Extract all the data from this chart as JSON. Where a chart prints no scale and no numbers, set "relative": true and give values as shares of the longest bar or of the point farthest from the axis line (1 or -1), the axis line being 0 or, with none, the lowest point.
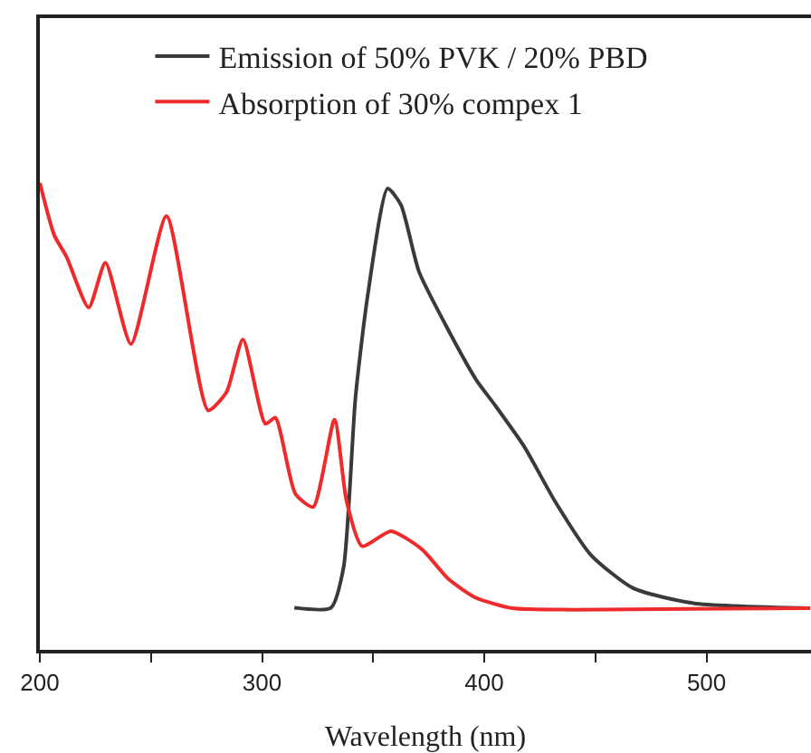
{
  "chart_data": {
    "type": "line",
    "xlabel": "Wavelength (nm)",
    "relative": true,
    "xlim": [
      200,
      547
    ],
    "xticks": [
      200,
      {
        "value": 250,
        "label": null
      },
      300,
      {
        "value": 350,
        "label": null
      },
      400,
      {
        "value": 450,
        "label": null
      },
      500
    ],
    "tick_labels": "x",
    "grid": false,
    "legend": "top",
    "marker": "none",
    "line_style": "solid",
    "series": [
      {
        "name": "Emission of 50% PVK / 20% PBD",
        "color": "#3a3a3a",
        "x": [
          314.5,
          331,
          336.7,
          342,
          347.5,
          356.5,
          362.5,
          370.6,
          382.8,
          396.4,
          404.5,
          418,
          431.7,
          448,
          467,
          494,
          546.6
        ],
        "values": [
          0.09,
          0.09,
          0.177,
          0.539,
          0.758,
          0.988,
          0.953,
          0.81,
          0.694,
          0.578,
          0.526,
          0.435,
          0.319,
          0.203,
          0.132,
          0.1,
          0.089
        ]
      },
      {
        "name": "Absorption of 30% compex 1",
        "color": "#ee2a2a",
        "x": [
          200,
          206.5,
          212,
          222,
          229.5,
          241,
          257,
          275.7,
          284,
          291.4,
          301.5,
          306,
          315,
          323,
          332.6,
          338,
          345,
          358,
          372,
          384,
          396,
          412.6,
          440,
          546.6
        ],
        "values": [
          1.0,
          0.888,
          0.842,
          0.733,
          0.829,
          0.655,
          0.929,
          0.513,
          0.552,
          0.665,
          0.484,
          0.497,
          0.334,
          0.306,
          0.493,
          0.319,
          0.222,
          0.254,
          0.215,
          0.151,
          0.112,
          0.089,
          0.086,
          0.089
        ]
      }
    ]
  }
}
